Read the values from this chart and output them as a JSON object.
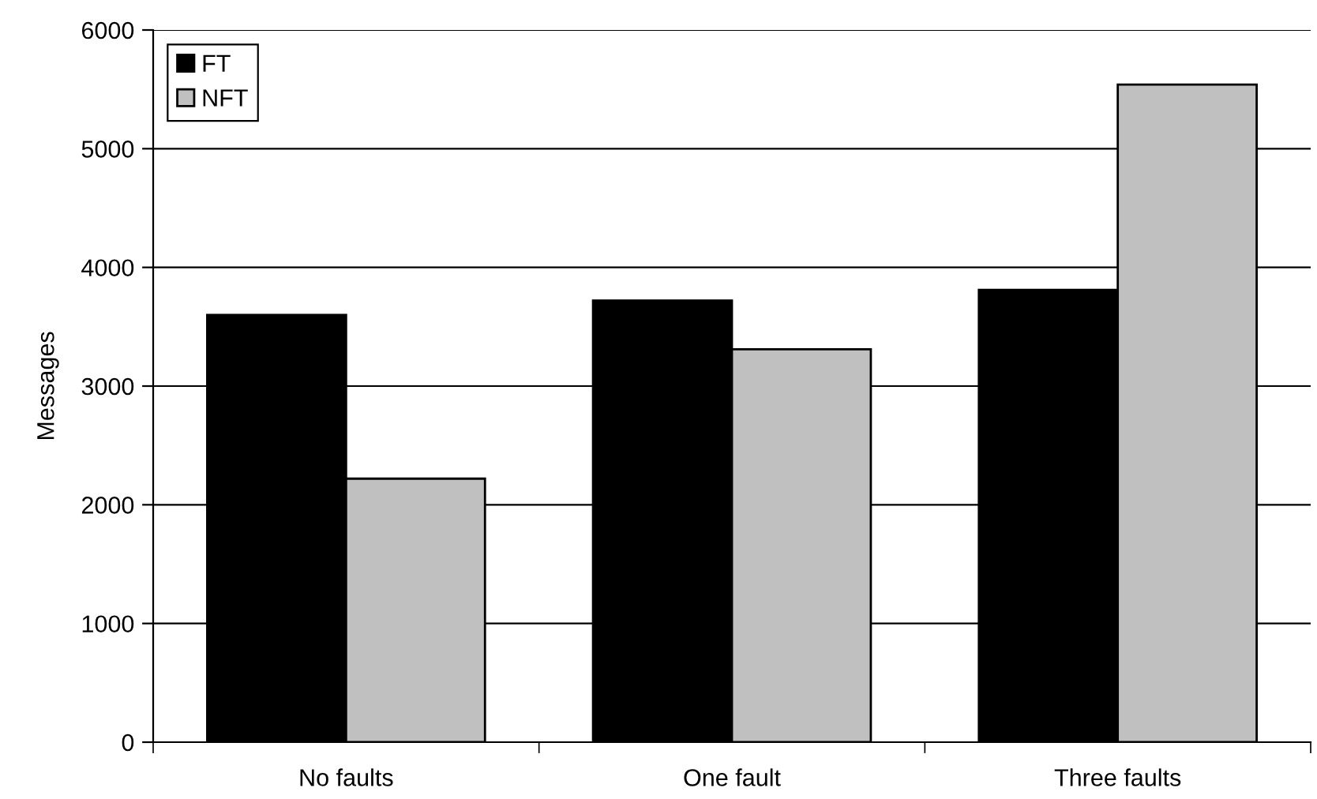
{
  "chart_data": {
    "type": "bar",
    "ylabel": "Messages",
    "categories": [
      "No faults",
      "One fault",
      "Three faults"
    ],
    "series": [
      {
        "name": "FT",
        "color": "#000000",
        "values": [
          3600,
          3720,
          3810
        ]
      },
      {
        "name": "NFT",
        "color": "#c0c0c0",
        "values": [
          2220,
          3310,
          5540
        ]
      }
    ],
    "ylim": [
      0,
      6000
    ],
    "yticks": [
      0,
      1000,
      2000,
      3000,
      4000,
      5000,
      6000
    ],
    "grid": "y",
    "legend": "top left"
  }
}
